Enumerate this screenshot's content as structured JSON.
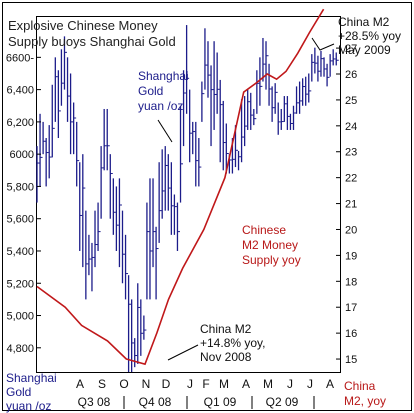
{
  "title_lines": [
    "Explosive Chinese Money",
    "Supply buoys Shanghai Gold"
  ],
  "annotations": {
    "gold_label": [
      "Shanghai",
      "Gold",
      "yuan /oz"
    ],
    "m2_label": [
      "Chinese",
      "M2 Money",
      "Supply yoy"
    ],
    "m2_high": [
      "China M2",
      "+28.5% yoy",
      "May 2009"
    ],
    "m2_low": [
      "China M2",
      "+14.8% yoy,",
      "Nov 2008"
    ],
    "left_axis_footer": [
      "Shanghai",
      "Gold",
      "yuan /oz"
    ],
    "right_axis_footer": [
      "China",
      "M2, yoy"
    ]
  },
  "colors": {
    "gold_bars": "#1c1c8a",
    "m2_line": "#c0181a",
    "title": "#222222",
    "gold_label": "#1c1c8a",
    "m2_label": "#b81818",
    "frame": "#000000"
  },
  "chart_data": {
    "type": "line",
    "title": "Explosive Chinese Money Supply buoys Shanghai Gold",
    "x_month_labels": [
      "A",
      "S",
      "O",
      "N",
      "D",
      "J",
      "F",
      "M",
      "A",
      "M",
      "J",
      "J",
      "A"
    ],
    "x_quarter_labels": [
      "Q3 08",
      "Q4 08",
      "Q1 09",
      "Q2 09"
    ],
    "left_axis": {
      "label": "Shanghai Gold yuan /oz",
      "ylim": [
        4650,
        6850
      ],
      "ticks": [
        4800,
        5000,
        5200,
        5400,
        5600,
        5800,
        6000,
        6200,
        6400,
        6600
      ],
      "tick_labels": [
        "4,800",
        "5,000",
        "5,200",
        "5,400",
        "5,600",
        "5,800",
        "6000",
        "6,200",
        "6,400",
        "6600-"
      ]
    },
    "right_axis": {
      "label": "China M2, yoy",
      "ylim": [
        14.5,
        28.2
      ],
      "ticks": [
        15,
        16,
        17,
        18,
        19,
        20,
        21,
        22,
        23,
        24,
        25,
        26,
        27
      ],
      "tick_labels": [
        "15",
        "16",
        "17",
        "18",
        "19",
        "20",
        "21",
        "22",
        "23",
        "24",
        "25",
        "26",
        "27"
      ]
    },
    "series": [
      {
        "name": "Shanghai Gold yuan /oz",
        "type": "ohlc",
        "axis": "left",
        "x": [
          0.0,
          0.13,
          0.26,
          0.39,
          0.52,
          0.65,
          0.78,
          0.91,
          1.04,
          1.17,
          1.3,
          1.43,
          1.56,
          1.69,
          1.82,
          1.95,
          2.08,
          2.21,
          2.34,
          2.47,
          2.6,
          2.73,
          2.86,
          2.99,
          3.12,
          3.25,
          3.38,
          3.51,
          3.64,
          3.77,
          3.9,
          4.03,
          4.16,
          4.29,
          4.42,
          4.55,
          4.68,
          4.81,
          4.94,
          5.07,
          5.2,
          5.33,
          5.46,
          5.59,
          5.72,
          5.85,
          5.98,
          6.11,
          6.24,
          6.37,
          6.5,
          6.63,
          6.76,
          6.89,
          7.02,
          7.15,
          7.28,
          7.41,
          7.54,
          7.67,
          7.8,
          7.93,
          8.06,
          8.19,
          8.32,
          8.45,
          8.58,
          8.71,
          8.84,
          8.97,
          9.1,
          9.23,
          9.36,
          9.49,
          9.62,
          9.75,
          9.88,
          10.01,
          10.14,
          10.27,
          10.4,
          10.53,
          10.66,
          10.79,
          10.92,
          11.05,
          11.18,
          11.31,
          11.44,
          11.57,
          11.7,
          11.83,
          11.96,
          12.09,
          12.22,
          12.35,
          12.48,
          12.61,
          12.74
        ],
        "high": [
          6050,
          6250,
          6200,
          6100,
          6180,
          6430,
          6600,
          6520,
          6650,
          6730,
          6600,
          6500,
          6320,
          6200,
          5950,
          6000,
          5650,
          5500,
          5450,
          5650,
          5700,
          6050,
          6280,
          6280,
          6000,
          5850,
          5800,
          5850,
          5650,
          5500,
          5250,
          5100,
          4860,
          5200,
          5100,
          5000,
          5700,
          5850,
          5850,
          5550,
          5950,
          6030,
          6050,
          6000,
          5950,
          5750,
          5700,
          6300,
          6520,
          6800,
          6400,
          6200,
          6200,
          6100,
          6450,
          6780,
          6700,
          6550,
          6700,
          6630,
          6460,
          6330,
          6190,
          6000,
          6100,
          6180,
          6020,
          6340,
          6360,
          6400,
          6380,
          6280,
          6520,
          6600,
          6720,
          6700,
          6560,
          6420,
          6440,
          6320,
          6280,
          6360,
          6360,
          6250,
          6300,
          6420,
          6450,
          6470,
          6480,
          6500,
          6620,
          6660,
          6610,
          6640,
          6600,
          6560,
          6620,
          6650,
          6630
        ],
        "low": [
          5700,
          5800,
          6000,
          5800,
          5850,
          5980,
          6200,
          6100,
          6300,
          6400,
          6200,
          6000,
          6000,
          5800,
          5400,
          5300,
          5100,
          5250,
          5150,
          5300,
          5400,
          5600,
          5900,
          5900,
          5600,
          5500,
          5400,
          5300,
          5200,
          5100,
          4650,
          4650,
          4680,
          4700,
          4750,
          4850,
          5100,
          5100,
          5300,
          5100,
          5450,
          5600,
          5650,
          5650,
          5500,
          5500,
          5400,
          5700,
          6050,
          6250,
          5950,
          6000,
          5800,
          5800,
          6200,
          6400,
          6350,
          6050,
          6150,
          6250,
          5950,
          5900,
          5880,
          5880,
          5880,
          5920,
          5900,
          5950,
          6050,
          6150,
          6150,
          6180,
          6250,
          6300,
          6450,
          6400,
          6300,
          6200,
          6250,
          6120,
          6150,
          6200,
          6150,
          6150,
          6150,
          6250,
          6250,
          6300,
          6300,
          6320,
          6450,
          6500,
          6450,
          6480,
          6480,
          6420,
          6480,
          6550,
          6550
        ]
      },
      {
        "name": "Chinese M2 Money Supply yoy",
        "type": "line",
        "axis": "right",
        "x": [
          0.0,
          1.2,
          1.9,
          3.0,
          3.8,
          4.6,
          5.1,
          5.6,
          6.2,
          7.1,
          8.0,
          8.8,
          9.4,
          9.8,
          10.2,
          10.6,
          11.1,
          11.6,
          12.2
        ],
        "values": [
          17.8,
          17.0,
          16.3,
          15.7,
          15.0,
          14.8,
          16.0,
          17.3,
          18.5,
          20.0,
          22.0,
          25.3,
          25.7,
          26.0,
          25.8,
          26.1,
          26.8,
          27.6,
          28.5
        ]
      }
    ],
    "grid": false
  }
}
